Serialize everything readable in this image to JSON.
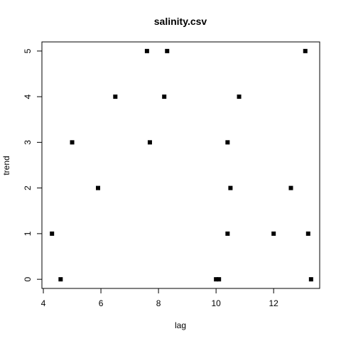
{
  "chart_data": {
    "type": "scatter",
    "title": "salinity.csv",
    "xlabel": "lag",
    "ylabel": "trend",
    "xlim": [
      3.95,
      13.6
    ],
    "ylim": [
      -0.2,
      5.2
    ],
    "xticks": [
      4,
      6,
      8,
      10,
      12
    ],
    "yticks": [
      0,
      1,
      2,
      3,
      4,
      5
    ],
    "grid": false,
    "point_color": "#000000",
    "points": [
      {
        "x": 4.3,
        "y": 1
      },
      {
        "x": 4.6,
        "y": 0
      },
      {
        "x": 5.0,
        "y": 3
      },
      {
        "x": 5.9,
        "y": 2
      },
      {
        "x": 6.5,
        "y": 4
      },
      {
        "x": 7.6,
        "y": 5
      },
      {
        "x": 7.7,
        "y": 3
      },
      {
        "x": 8.2,
        "y": 4
      },
      {
        "x": 8.3,
        "y": 5
      },
      {
        "x": 10.0,
        "y": 0
      },
      {
        "x": 10.1,
        "y": 0
      },
      {
        "x": 10.4,
        "y": 1
      },
      {
        "x": 10.4,
        "y": 3
      },
      {
        "x": 10.5,
        "y": 2
      },
      {
        "x": 10.8,
        "y": 4
      },
      {
        "x": 12.0,
        "y": 1
      },
      {
        "x": 12.6,
        "y": 2
      },
      {
        "x": 13.1,
        "y": 5
      },
      {
        "x": 13.2,
        "y": 1
      },
      {
        "x": 13.3,
        "y": 0
      }
    ]
  }
}
